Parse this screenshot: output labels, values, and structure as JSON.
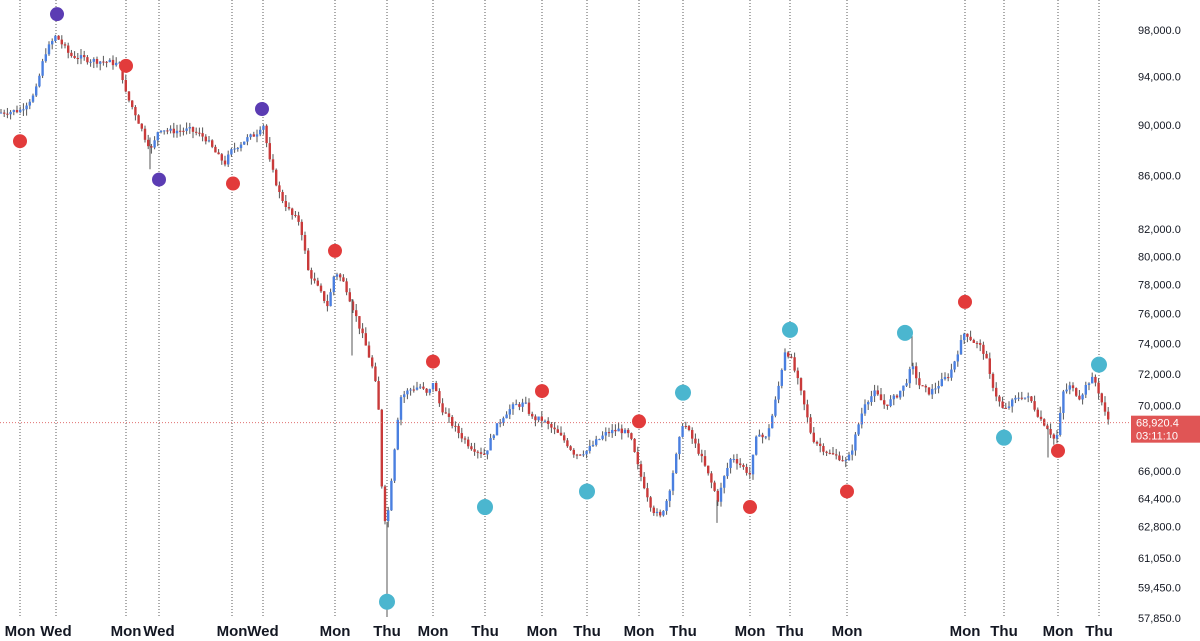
{
  "chart_data": {
    "type": "candlestick",
    "y_scale": "log",
    "ylim": [
      57000,
      100500
    ],
    "y_ticks": [
      "98,000.0",
      "94,000.0",
      "90,000.0",
      "86,000.0",
      "82,000.0",
      "80,000.0",
      "78,000.0",
      "76,000.0",
      "74,000.0",
      "72,000.0",
      "70,000.0",
      "66,000.0",
      "64,400.0",
      "62,800.0",
      "61,050.0",
      "59,450.0",
      "57,850.0"
    ],
    "y_tick_values": [
      98000,
      94000,
      90000,
      86000,
      82000,
      80000,
      78000,
      76000,
      74000,
      72000,
      70000,
      66000,
      64400,
      62800,
      61050,
      59450,
      57850
    ],
    "x_labels": [
      "Mon",
      "Wed",
      "Mon",
      "Wed",
      "Mon",
      "Wed",
      "Mon",
      "Thu",
      "Mon",
      "Thu",
      "Mon",
      "Thu",
      "Mon",
      "Thu",
      "Mon",
      "Thu",
      "Mon",
      "Mon",
      "Thu",
      "Mon",
      "Thu"
    ],
    "x_positions": [
      20,
      56,
      126,
      159,
      232,
      263,
      335,
      387,
      433,
      485,
      542,
      587,
      639,
      683,
      750,
      790,
      847,
      965,
      1004,
      1058,
      1099
    ],
    "current_price": {
      "label": "68,920.4",
      "value": 68920.4,
      "countdown": "03:11:10"
    },
    "price_path": [
      [
        0,
        91000
      ],
      [
        20,
        91200
      ],
      [
        35,
        92500
      ],
      [
        45,
        96000
      ],
      [
        56,
        97500
      ],
      [
        70,
        95800
      ],
      [
        90,
        95400
      ],
      [
        110,
        95200
      ],
      [
        120,
        95000
      ],
      [
        126,
        92500
      ],
      [
        135,
        91000
      ],
      [
        145,
        89000
      ],
      [
        152,
        88000
      ],
      [
        159,
        89800
      ],
      [
        170,
        89500
      ],
      [
        190,
        89600
      ],
      [
        205,
        89000
      ],
      [
        218,
        87500
      ],
      [
        225,
        87000
      ],
      [
        232,
        88000
      ],
      [
        245,
        88800
      ],
      [
        256,
        89300
      ],
      [
        263,
        90200
      ],
      [
        270,
        87000
      ],
      [
        280,
        84500
      ],
      [
        292,
        83000
      ],
      [
        300,
        82500
      ],
      [
        308,
        79000
      ],
      [
        320,
        77500
      ],
      [
        328,
        76500
      ],
      [
        335,
        79000
      ],
      [
        345,
        78000
      ],
      [
        355,
        76000
      ],
      [
        365,
        74000
      ],
      [
        372,
        72500
      ],
      [
        378,
        70500
      ],
      [
        383,
        63500
      ],
      [
        387,
        63000
      ],
      [
        393,
        66500
      ],
      [
        400,
        70500
      ],
      [
        410,
        71000
      ],
      [
        420,
        71200
      ],
      [
        428,
        70600
      ],
      [
        433,
        71500
      ],
      [
        440,
        70000
      ],
      [
        450,
        69000
      ],
      [
        460,
        68200
      ],
      [
        470,
        67500
      ],
      [
        478,
        67200
      ],
      [
        485,
        67000
      ],
      [
        495,
        68500
      ],
      [
        505,
        69500
      ],
      [
        515,
        70000
      ],
      [
        525,
        70100
      ],
      [
        532,
        69200
      ],
      [
        542,
        69100
      ],
      [
        555,
        68400
      ],
      [
        565,
        67800
      ],
      [
        575,
        67000
      ],
      [
        587,
        67200
      ],
      [
        597,
        67800
      ],
      [
        607,
        68300
      ],
      [
        620,
        68500
      ],
      [
        630,
        68100
      ],
      [
        639,
        66000
      ],
      [
        645,
        65000
      ],
      [
        652,
        63800
      ],
      [
        660,
        63300
      ],
      [
        668,
        64500
      ],
      [
        675,
        66500
      ],
      [
        683,
        69000
      ],
      [
        690,
        68200
      ],
      [
        700,
        67000
      ],
      [
        710,
        65500
      ],
      [
        718,
        64300
      ],
      [
        725,
        65800
      ],
      [
        732,
        66900
      ],
      [
        740,
        66400
      ],
      [
        750,
        65800
      ],
      [
        758,
        68500
      ],
      [
        765,
        67800
      ],
      [
        772,
        69300
      ],
      [
        778,
        71000
      ],
      [
        785,
        73500
      ],
      [
        790,
        73200
      ],
      [
        798,
        71500
      ],
      [
        805,
        69800
      ],
      [
        812,
        68000
      ],
      [
        820,
        67500
      ],
      [
        830,
        67000
      ],
      [
        840,
        66800
      ],
      [
        847,
        66500
      ],
      [
        853,
        67500
      ],
      [
        858,
        68700
      ],
      [
        865,
        70200
      ],
      [
        875,
        70800
      ],
      [
        885,
        70000
      ],
      [
        895,
        70500
      ],
      [
        905,
        71300
      ],
      [
        912,
        72500
      ],
      [
        920,
        71200
      ],
      [
        930,
        70800
      ],
      [
        940,
        71400
      ],
      [
        950,
        72000
      ],
      [
        958,
        73500
      ],
      [
        965,
        74800
      ],
      [
        972,
        74200
      ],
      [
        980,
        73800
      ],
      [
        985,
        73300
      ],
      [
        990,
        71800
      ],
      [
        997,
        70500
      ],
      [
        1004,
        69600
      ],
      [
        1012,
        70200
      ],
      [
        1020,
        70600
      ],
      [
        1030,
        70400
      ],
      [
        1040,
        69200
      ],
      [
        1048,
        68600
      ],
      [
        1055,
        67800
      ],
      [
        1058,
        68300
      ],
      [
        1063,
        70800
      ],
      [
        1070,
        71200
      ],
      [
        1080,
        70500
      ],
      [
        1088,
        71500
      ],
      [
        1094,
        71700
      ],
      [
        1099,
        70800
      ],
      [
        1105,
        69500
      ],
      [
        1110,
        68920
      ]
    ],
    "signals": [
      {
        "type": "purple",
        "x": 57,
        "price": 99400
      },
      {
        "type": "purple",
        "x": 159,
        "price": 85700
      },
      {
        "type": "purple",
        "x": 262,
        "price": 91300
      },
      {
        "type": "red",
        "x": 20,
        "price": 88700
      },
      {
        "type": "red",
        "x": 126,
        "price": 94900
      },
      {
        "type": "red",
        "x": 233,
        "price": 85400
      },
      {
        "type": "red",
        "x": 335,
        "price": 80400
      },
      {
        "type": "red",
        "x": 433,
        "price": 72800
      },
      {
        "type": "red",
        "x": 542,
        "price": 70900
      },
      {
        "type": "red",
        "x": 639,
        "price": 69000
      },
      {
        "type": "red",
        "x": 750,
        "price": 63900
      },
      {
        "type": "red",
        "x": 847,
        "price": 64800
      },
      {
        "type": "red",
        "x": 965,
        "price": 76800
      },
      {
        "type": "red",
        "x": 1058,
        "price": 67200
      },
      {
        "type": "cyan",
        "x": 387,
        "price": 58700
      },
      {
        "type": "cyan",
        "x": 485,
        "price": 63900
      },
      {
        "type": "cyan",
        "x": 587,
        "price": 64800
      },
      {
        "type": "cyan",
        "x": 683,
        "price": 70800
      },
      {
        "type": "cyan",
        "x": 790,
        "price": 74900
      },
      {
        "type": "cyan",
        "x": 905,
        "price": 74700
      },
      {
        "type": "cyan",
        "x": 1004,
        "price": 68000
      },
      {
        "type": "cyan",
        "x": 1099,
        "price": 72600
      }
    ],
    "colors": {
      "up": "#4a7fe0",
      "down": "#c93a3a",
      "wick": "#555555",
      "grid": "#5a5a5a",
      "price_line": "#e07070",
      "badge": "#e05555",
      "signal_red": "#e23b3b",
      "signal_cyan": "#4bb6cf",
      "signal_purple": "#5b3cb3"
    }
  }
}
